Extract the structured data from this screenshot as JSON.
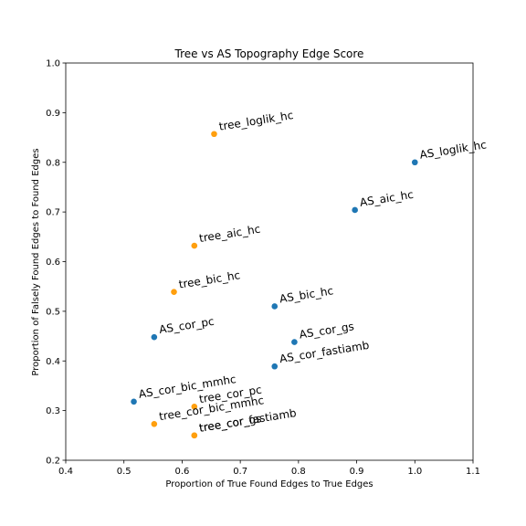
{
  "chart_data": {
    "type": "scatter",
    "title": "Tree vs AS Topography Edge Score",
    "xlabel": "Proportion of True Found Edges to True Edges",
    "ylabel": "Proportion of Falsely Found Edges to Found Edges",
    "xlim": [
      0.4,
      1.1
    ],
    "ylim": [
      0.2,
      1.0
    ],
    "xticks": [
      "0.4",
      "0.5",
      "0.6",
      "0.7",
      "0.8",
      "0.9",
      "1.0",
      "1.1"
    ],
    "yticks": [
      "0.2",
      "0.3",
      "0.4",
      "0.5",
      "0.6",
      "0.7",
      "0.8",
      "0.9",
      "1.0"
    ],
    "grid": false,
    "series": [
      {
        "color": "#1f77b4",
        "points": [
          {
            "x": 1.0,
            "y": 0.8,
            "label": "AS_loglik_hc"
          },
          {
            "x": 0.897,
            "y": 0.704,
            "label": "AS_aic_hc"
          },
          {
            "x": 0.759,
            "y": 0.51,
            "label": "AS_bic_hc"
          },
          {
            "x": 0.793,
            "y": 0.438,
            "label": "AS_cor_gs"
          },
          {
            "x": 0.552,
            "y": 0.448,
            "label": "AS_cor_pc"
          },
          {
            "x": 0.759,
            "y": 0.389,
            "label": "AS_cor_fastiamb"
          },
          {
            "x": 0.517,
            "y": 0.318,
            "label": "AS_cor_bic_mmhc"
          }
        ]
      },
      {
        "color": "#ff9f0e",
        "points": [
          {
            "x": 0.655,
            "y": 0.857,
            "label": "tree_loglik_hc"
          },
          {
            "x": 0.621,
            "y": 0.632,
            "label": "tree_aic_hc"
          },
          {
            "x": 0.586,
            "y": 0.539,
            "label": "tree_bic_hc"
          },
          {
            "x": 0.621,
            "y": 0.308,
            "label": "tree_cor_pc"
          },
          {
            "x": 0.552,
            "y": 0.273,
            "label": "tree_cor_bic_mmhc"
          },
          {
            "x": 0.621,
            "y": 0.25,
            "label": "tree_cor_gs"
          },
          {
            "x": 0.621,
            "y": 0.25,
            "label": "tree_cor_fastiamb"
          }
        ]
      }
    ]
  }
}
